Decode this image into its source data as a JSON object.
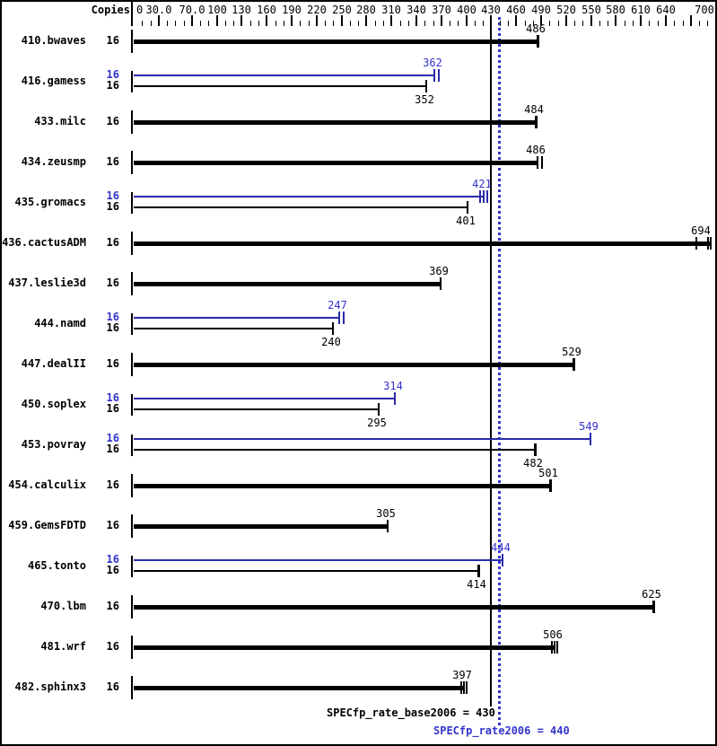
{
  "header": {
    "copies_label": "Copies"
  },
  "axis": {
    "tick_labels": [
      "0",
      "30.0",
      "70.0",
      "100",
      "130",
      "160",
      "190",
      "220",
      "250",
      "280",
      "310",
      "340",
      "370",
      "400",
      "430",
      "460",
      "490",
      "520",
      "550",
      "580",
      "610",
      "640",
      "700"
    ],
    "tick_values": [
      0,
      30,
      70,
      100,
      130,
      160,
      190,
      220,
      250,
      280,
      310,
      340,
      370,
      400,
      430,
      460,
      490,
      520,
      550,
      580,
      610,
      640,
      700
    ],
    "unlabeled_major_ticks": [
      670
    ],
    "minor_tick_step": 10,
    "max_value": 700
  },
  "benchmarks": [
    {
      "name": "410.bwaves",
      "bars": [
        {
          "copies": "16",
          "kind": "single",
          "value": 486,
          "label": "486",
          "marks": [
            0
          ],
          "cap": "thick"
        }
      ]
    },
    {
      "name": "416.gamess",
      "bars": [
        {
          "copies": "16",
          "kind": "peak",
          "value": 362,
          "label": "362",
          "marks": [
            0,
            5
          ],
          "cap": "thin"
        },
        {
          "copies": "16",
          "kind": "base",
          "value": 352,
          "label": "352",
          "marks": [
            0
          ],
          "cap": "thin"
        }
      ]
    },
    {
      "name": "433.milc",
      "bars": [
        {
          "copies": "16",
          "kind": "single",
          "value": 484,
          "label": "484",
          "marks": [
            0
          ],
          "cap": "thick"
        }
      ]
    },
    {
      "name": "434.zeusmp",
      "bars": [
        {
          "copies": "16",
          "kind": "single",
          "value": 486,
          "label": "486",
          "marks": [
            0,
            5
          ],
          "cap": "thin"
        }
      ]
    },
    {
      "name": "435.gromacs",
      "bars": [
        {
          "copies": "16",
          "kind": "peak",
          "value": 421,
          "label": "421",
          "marks": [
            -4,
            0,
            4
          ],
          "cap": "thin"
        },
        {
          "copies": "16",
          "kind": "base",
          "value": 401,
          "label": "401",
          "marks": [
            0
          ],
          "cap": "thin"
        }
      ]
    },
    {
      "name": "436.cactusADM",
      "bars": [
        {
          "copies": "16",
          "kind": "single",
          "value": 694,
          "label": "694",
          "marks": [
            -16,
            -3,
            0
          ],
          "cap": "thin"
        }
      ]
    },
    {
      "name": "437.leslie3d",
      "bars": [
        {
          "copies": "16",
          "kind": "single",
          "value": 369,
          "label": "369",
          "marks": [
            0
          ],
          "cap": "thin"
        }
      ]
    },
    {
      "name": "444.namd",
      "bars": [
        {
          "copies": "16",
          "kind": "peak",
          "value": 247,
          "label": "247",
          "marks": [
            0,
            5
          ],
          "cap": "thin"
        },
        {
          "copies": "16",
          "kind": "base",
          "value": 240,
          "label": "240",
          "marks": [
            0
          ],
          "cap": "thin"
        }
      ]
    },
    {
      "name": "447.dealII",
      "bars": [
        {
          "copies": "16",
          "kind": "single",
          "value": 529,
          "label": "529",
          "marks": [
            0
          ],
          "cap": "thick"
        }
      ]
    },
    {
      "name": "450.soplex",
      "bars": [
        {
          "copies": "16",
          "kind": "peak",
          "value": 314,
          "label": "314",
          "marks": [
            0
          ],
          "cap": "thin"
        },
        {
          "copies": "16",
          "kind": "base",
          "value": 295,
          "label": "295",
          "marks": [
            0
          ],
          "cap": "thin"
        }
      ]
    },
    {
      "name": "453.povray",
      "bars": [
        {
          "copies": "16",
          "kind": "peak",
          "value": 549,
          "label": "549",
          "marks": [
            0
          ],
          "cap": "thin"
        },
        {
          "copies": "16",
          "kind": "base",
          "value": 482,
          "label": "482",
          "marks": [
            0
          ],
          "cap": "thick"
        }
      ]
    },
    {
      "name": "454.calculix",
      "bars": [
        {
          "copies": "16",
          "kind": "single",
          "value": 501,
          "label": "501",
          "marks": [
            0
          ],
          "cap": "thick"
        }
      ]
    },
    {
      "name": "459.GemsFDTD",
      "bars": [
        {
          "copies": "16",
          "kind": "single",
          "value": 305,
          "label": "305",
          "marks": [
            0
          ],
          "cap": "thin"
        }
      ]
    },
    {
      "name": "465.tonto",
      "bars": [
        {
          "copies": "16",
          "kind": "peak",
          "value": 444,
          "label": "444",
          "marks": [
            0
          ],
          "cap": "thin"
        },
        {
          "copies": "16",
          "kind": "base",
          "value": 414,
          "label": "414",
          "marks": [
            0
          ],
          "cap": "thick"
        }
      ]
    },
    {
      "name": "470.lbm",
      "bars": [
        {
          "copies": "16",
          "kind": "single",
          "value": 625,
          "label": "625",
          "marks": [
            0
          ],
          "cap": "thick"
        }
      ]
    },
    {
      "name": "481.wrf",
      "bars": [
        {
          "copies": "16",
          "kind": "single",
          "value": 506,
          "label": "506",
          "marks": [
            -3,
            0,
            3
          ],
          "cap": "thin"
        }
      ]
    },
    {
      "name": "482.sphinx3",
      "bars": [
        {
          "copies": "16",
          "kind": "single",
          "value": 397,
          "label": "397",
          "marks": [
            -3,
            0,
            3
          ],
          "cap": "thin"
        }
      ]
    }
  ],
  "footer": {
    "base_text": "SPECfp_rate_base2006 = 430",
    "base_value": 430,
    "peak_text": "SPECfp_rate2006 = 440",
    "peak_value": 440
  },
  "colors": {
    "peak_bar": "#2b2baa",
    "peak_text": "#3333cc",
    "base_bar": "#000000",
    "background": "#ffffff"
  },
  "chart_data": {
    "type": "bar",
    "orientation": "horizontal",
    "categories": [
      "410.bwaves",
      "416.gamess",
      "433.milc",
      "434.zeusmp",
      "435.gromacs",
      "436.cactusADM",
      "437.leslie3d",
      "444.namd",
      "447.dealII",
      "450.soplex",
      "453.povray",
      "454.calculix",
      "459.GemsFDTD",
      "465.tonto",
      "470.lbm",
      "481.wrf",
      "482.sphinx3"
    ],
    "copies": [
      16,
      16,
      16,
      16,
      16,
      16,
      16,
      16,
      16,
      16,
      16,
      16,
      16,
      16,
      16,
      16,
      16
    ],
    "series": [
      {
        "name": "base (black)",
        "values": [
          486,
          352,
          484,
          486,
          401,
          694,
          369,
          240,
          529,
          295,
          482,
          501,
          305,
          414,
          625,
          506,
          397
        ]
      },
      {
        "name": "peak (blue)",
        "values": [
          null,
          362,
          null,
          null,
          421,
          null,
          null,
          247,
          null,
          314,
          549,
          null,
          null,
          444,
          null,
          null,
          null
        ]
      }
    ],
    "reference_lines": [
      {
        "label": "SPECfp_rate_base2006",
        "value": 430,
        "style": "solid-black"
      },
      {
        "label": "SPECfp_rate2006",
        "value": 440,
        "style": "dotted-blue"
      }
    ],
    "xlim": [
      0,
      710
    ],
    "x_ticks": [
      0,
      30,
      70,
      100,
      130,
      160,
      190,
      220,
      250,
      280,
      310,
      340,
      370,
      400,
      430,
      460,
      490,
      520,
      550,
      580,
      610,
      640,
      700
    ],
    "grid": false,
    "legend": false
  }
}
